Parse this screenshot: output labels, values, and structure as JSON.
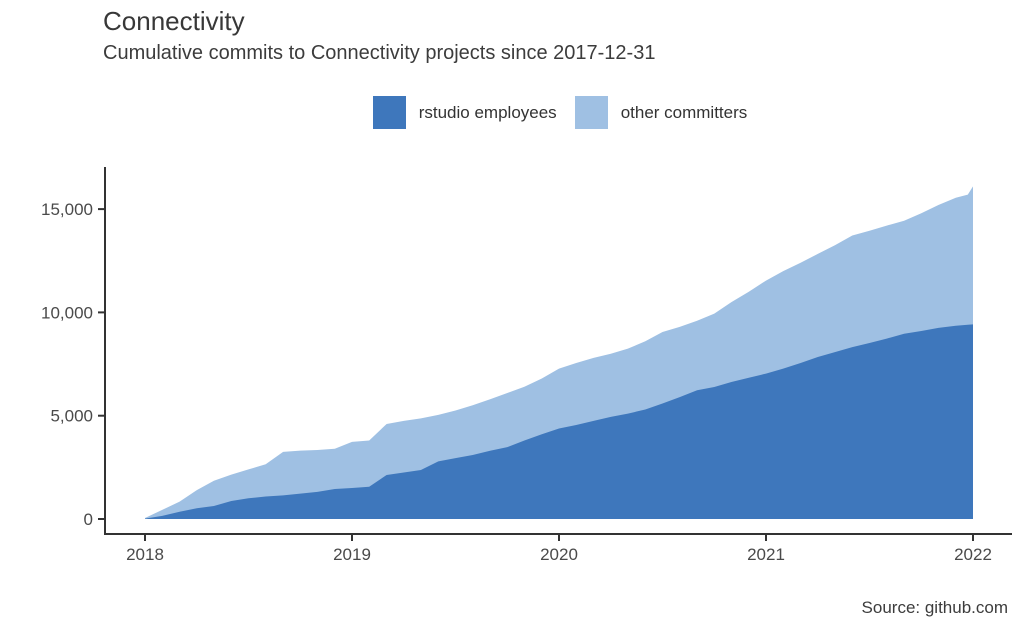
{
  "page": {
    "title": "Connectivity",
    "subtitle": "Cumulative commits to Connectivity projects since 2017-12-31",
    "source": "Source: github.com"
  },
  "colors": {
    "dark_blue": "#3E77BC",
    "light_blue": "#9FC0E3",
    "axis_line": "#333333",
    "tick_text": "#4a4a4a"
  },
  "legend": {
    "position": "top-center",
    "items": [
      {
        "label": "rstudio employees",
        "color": "#3E77BC"
      },
      {
        "label": "other committers",
        "color": "#9FC0E3"
      }
    ]
  },
  "chart_data": {
    "type": "area",
    "stacked": true,
    "title": "Connectivity",
    "subtitle": "Cumulative commits to Connectivity projects since 2017-12-31",
    "xlabel": "",
    "ylabel": "",
    "xlim": [
      2017.8,
      2022.2
    ],
    "ylim": [
      0,
      17000
    ],
    "grid": false,
    "legend_position": "top",
    "x_ticks": [
      {
        "value": 2018,
        "label": "2018"
      },
      {
        "value": 2019,
        "label": "2019"
      },
      {
        "value": 2020,
        "label": "2020"
      },
      {
        "value": 2021,
        "label": "2021"
      },
      {
        "value": 2022,
        "label": "2022"
      }
    ],
    "y_ticks": [
      {
        "value": 0,
        "label": "0"
      },
      {
        "value": 5000,
        "label": "5,000"
      },
      {
        "value": 10000,
        "label": "10,000"
      },
      {
        "value": 15000,
        "label": "15,000"
      }
    ],
    "x": [
      2018,
      2018.083,
      2018.167,
      2018.25,
      2018.333,
      2018.417,
      2018.5,
      2018.583,
      2018.667,
      2018.75,
      2018.833,
      2018.917,
      2019,
      2019.083,
      2019.167,
      2019.25,
      2019.333,
      2019.417,
      2019.5,
      2019.583,
      2019.667,
      2019.75,
      2019.833,
      2019.917,
      2020,
      2020.083,
      2020.167,
      2020.25,
      2020.333,
      2020.417,
      2020.5,
      2020.583,
      2020.667,
      2020.75,
      2020.833,
      2020.917,
      2021,
      2021.083,
      2021.167,
      2021.25,
      2021.333,
      2021.417,
      2021.5,
      2021.583,
      2021.667,
      2021.75,
      2021.833,
      2021.917,
      2021.975,
      2022
    ],
    "series": [
      {
        "name": "rstudio employees",
        "color": "#3E77BC",
        "values": [
          20,
          150,
          350,
          520,
          630,
          870,
          1000,
          1090,
          1140,
          1230,
          1310,
          1450,
          1500,
          1560,
          2130,
          2250,
          2370,
          2790,
          2950,
          3100,
          3300,
          3480,
          3800,
          4100,
          4380,
          4550,
          4750,
          4940,
          5100,
          5300,
          5590,
          5900,
          6230,
          6390,
          6630,
          6840,
          7040,
          7280,
          7550,
          7840,
          8080,
          8320,
          8520,
          8730,
          8970,
          9100,
          9250,
          9350,
          9400,
          9420
        ]
      },
      {
        "name": "other committers",
        "color": "#9FC0E3",
        "values": [
          30,
          290,
          490,
          880,
          1220,
          1280,
          1400,
          1560,
          2110,
          2080,
          2030,
          1950,
          2230,
          2240,
          2470,
          2500,
          2500,
          2250,
          2300,
          2410,
          2500,
          2620,
          2600,
          2700,
          2900,
          3000,
          3050,
          3060,
          3150,
          3300,
          3460,
          3400,
          3370,
          3550,
          3870,
          4160,
          4500,
          4720,
          4850,
          4990,
          5170,
          5400,
          5430,
          5470,
          5470,
          5700,
          5950,
          6200,
          6300,
          6680
        ]
      }
    ]
  }
}
